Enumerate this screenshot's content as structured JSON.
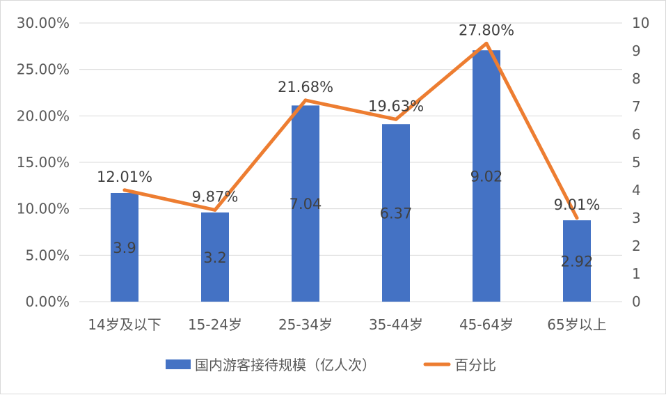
{
  "chart_data": {
    "type": "bar",
    "categories": [
      "14岁及以下",
      "15-24岁",
      "25-34岁",
      "35-44岁",
      "45-64岁",
      "65岁以上"
    ],
    "series": [
      {
        "name": "国内游客接待规模（亿人次）",
        "type": "bar",
        "axis": "right",
        "values": [
          3.9,
          3.2,
          7.04,
          6.37,
          9.02,
          2.92
        ],
        "labels": [
          "3.9",
          "3.2",
          "7.04",
          "6.37",
          "9.02",
          "2.92"
        ],
        "color": "#4472c4"
      },
      {
        "name": "百分比",
        "type": "line",
        "axis": "left",
        "values": [
          12.01,
          9.87,
          21.68,
          19.63,
          27.8,
          9.01
        ],
        "labels": [
          "12.01%",
          "9.87%",
          "21.68%",
          "19.63%",
          "27.80%",
          "9.01%"
        ],
        "color": "#ed7d31"
      }
    ],
    "left_axis": {
      "ylim": [
        0,
        30
      ],
      "ticks": [
        "0.00%",
        "5.00%",
        "10.00%",
        "15.00%",
        "20.00%",
        "25.00%",
        "30.00%"
      ]
    },
    "right_axis": {
      "ylim": [
        0,
        10
      ],
      "ticks": [
        "0",
        "1",
        "2",
        "3",
        "4",
        "5",
        "6",
        "7",
        "8",
        "9",
        "10"
      ]
    },
    "grid": true,
    "legend": "bottom",
    "title": "",
    "xlabel": "",
    "ylabel": ""
  }
}
